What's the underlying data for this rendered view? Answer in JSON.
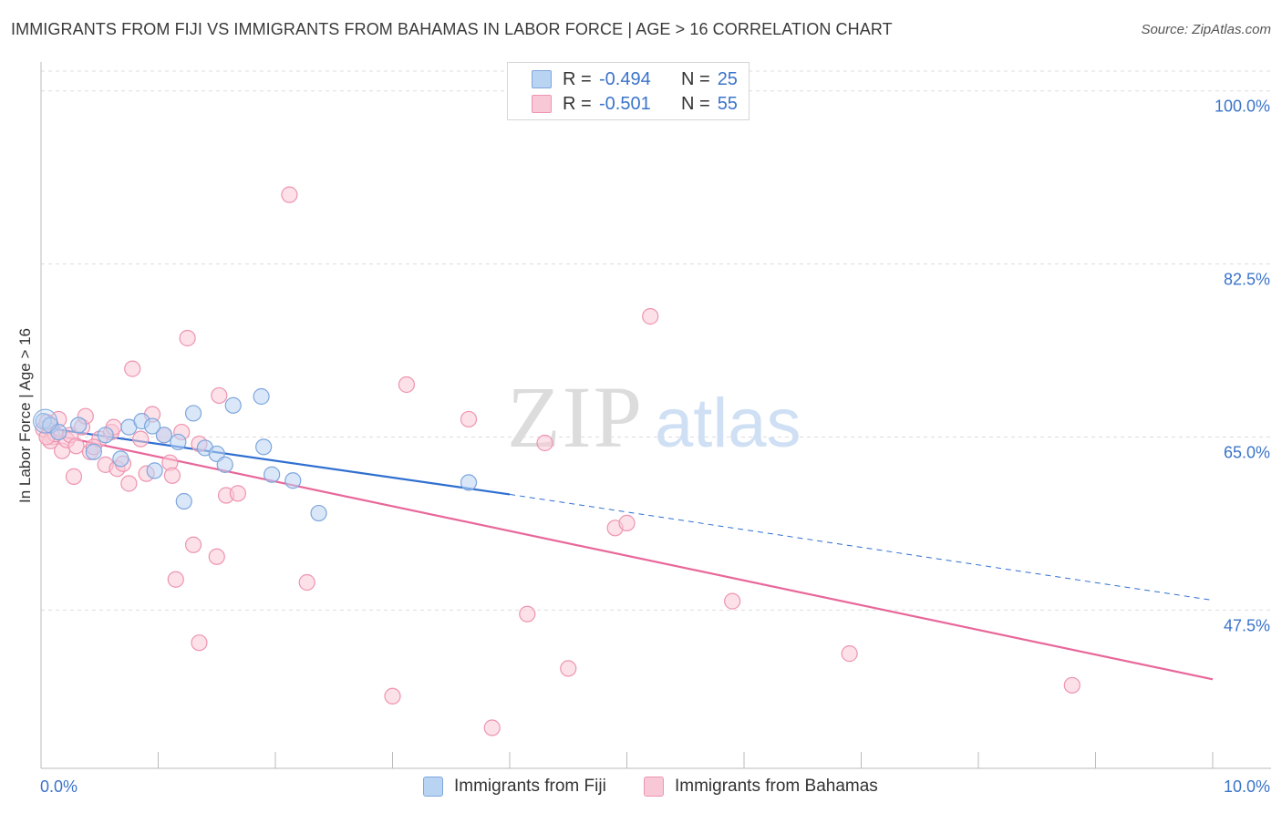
{
  "title": "IMMIGRANTS FROM FIJI VS IMMIGRANTS FROM BAHAMAS IN LABOR FORCE | AGE > 16 CORRELATION CHART",
  "source": "Source: ZipAtlas.com",
  "watermark": {
    "zip": "ZIP",
    "atlas": "atlas"
  },
  "legend": {
    "rows": [
      {
        "r_label": "R =",
        "r_value": "-0.494",
        "n_label": "N =",
        "n_value": "25",
        "color": "#b9d3f2",
        "border": "#7ea6dd"
      },
      {
        "r_label": "R =",
        "r_value": "-0.501",
        "n_label": "N =",
        "n_value": "55",
        "color": "#f9c8d6",
        "border": "#ee94b0"
      }
    ]
  },
  "bottom_legend": {
    "fiji": "Immigrants from Fiji",
    "bahamas": "Immigrants from Bahamas"
  },
  "colors": {
    "fiji_fill": "#b9d3f2",
    "fiji_stroke": "#7ea6dd",
    "fiji_line": "#2f6fd0",
    "bahamas_fill": "#f9c8d6",
    "bahamas_stroke": "#ee94b0",
    "bahamas_line": "#e8679a",
    "axis_text": "#3b74c9",
    "grid": "#dddddd"
  },
  "chart_data": {
    "type": "scatter",
    "title": "IMMIGRANTS FROM FIJI VS IMMIGRANTS FROM BAHAMAS IN LABOR FORCE | AGE > 16 CORRELATION CHART",
    "xlabel": "",
    "ylabel": "In Labor Force | Age > 16",
    "xlim": [
      0,
      10
    ],
    "ylim": [
      31.5,
      102
    ],
    "x_tick_labels": [
      "0.0%",
      "10.0%"
    ],
    "y_ticks": [
      47.5,
      65.0,
      82.5,
      100.0
    ],
    "y_tick_labels": [
      "47.5%",
      "65.0%",
      "82.5%",
      "100.0%"
    ],
    "series": [
      {
        "name": "Immigrants from Fiji",
        "points": [
          [
            0.02,
            66.6
          ],
          [
            0.08,
            66.2
          ],
          [
            0.15,
            65.5
          ],
          [
            0.32,
            66.2
          ],
          [
            0.45,
            63.5
          ],
          [
            0.55,
            65.2
          ],
          [
            0.68,
            62.8
          ],
          [
            0.75,
            66.0
          ],
          [
            0.86,
            66.6
          ],
          [
            0.97,
            61.6
          ],
          [
            1.05,
            65.2
          ],
          [
            1.17,
            64.5
          ],
          [
            1.3,
            67.4
          ],
          [
            1.4,
            63.9
          ],
          [
            1.5,
            63.3
          ],
          [
            1.57,
            62.2
          ],
          [
            1.64,
            68.2
          ],
          [
            1.9,
            64.0
          ],
          [
            1.88,
            69.1
          ],
          [
            1.97,
            61.2
          ],
          [
            2.15,
            60.6
          ],
          [
            2.37,
            57.3
          ],
          [
            3.65,
            60.4
          ],
          [
            1.22,
            58.5
          ],
          [
            0.95,
            66.1
          ]
        ],
        "trend": {
          "x": [
            0.0,
            4.0
          ],
          "y": [
            66.0,
            59.2
          ],
          "dashed_to": [
            10.0,
            48.5
          ]
        }
      },
      {
        "name": "Immigrants from Bahamas",
        "points": [
          [
            0.02,
            65.8
          ],
          [
            0.05,
            66.5
          ],
          [
            0.1,
            65.0
          ],
          [
            0.15,
            66.8
          ],
          [
            0.18,
            63.6
          ],
          [
            0.22,
            64.7
          ],
          [
            0.25,
            65.2
          ],
          [
            0.3,
            64.1
          ],
          [
            0.35,
            66.0
          ],
          [
            0.38,
            67.1
          ],
          [
            0.42,
            63.5
          ],
          [
            0.5,
            64.8
          ],
          [
            0.55,
            62.2
          ],
          [
            0.6,
            65.5
          ],
          [
            0.65,
            61.8
          ],
          [
            0.7,
            62.3
          ],
          [
            0.75,
            60.3
          ],
          [
            0.78,
            71.9
          ],
          [
            0.85,
            64.8
          ],
          [
            0.9,
            61.3
          ],
          [
            0.95,
            67.3
          ],
          [
            1.05,
            65.2
          ],
          [
            1.1,
            62.4
          ],
          [
            1.12,
            61.1
          ],
          [
            1.15,
            50.6
          ],
          [
            1.25,
            75.0
          ],
          [
            1.3,
            54.1
          ],
          [
            1.35,
            64.3
          ],
          [
            1.2,
            65.5
          ],
          [
            1.35,
            44.2
          ],
          [
            1.5,
            52.9
          ],
          [
            1.52,
            69.2
          ],
          [
            1.58,
            59.1
          ],
          [
            1.68,
            59.3
          ],
          [
            2.12,
            89.5
          ],
          [
            2.27,
            50.3
          ],
          [
            3.0,
            38.8
          ],
          [
            3.12,
            70.3
          ],
          [
            3.65,
            66.8
          ],
          [
            3.85,
            35.6
          ],
          [
            4.15,
            47.1
          ],
          [
            4.3,
            64.4
          ],
          [
            4.5,
            41.6
          ],
          [
            4.9,
            55.8
          ],
          [
            5.0,
            56.3
          ],
          [
            5.2,
            77.2
          ],
          [
            5.9,
            48.4
          ],
          [
            6.9,
            43.1
          ],
          [
            8.8,
            39.9
          ],
          [
            0.08,
            64.6
          ],
          [
            0.12,
            65.3
          ],
          [
            0.28,
            61.0
          ],
          [
            0.45,
            64.0
          ],
          [
            0.62,
            66.0
          ],
          [
            0.05,
            65.0
          ]
        ],
        "trend": {
          "x": [
            0.0,
            10.0
          ],
          "y": [
            65.5,
            40.5
          ]
        }
      }
    ]
  }
}
